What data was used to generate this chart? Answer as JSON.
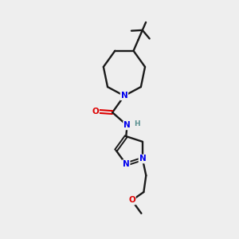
{
  "background_color": "#eeeeee",
  "bond_color": "#1a1a1a",
  "N_color": "#0000ee",
  "O_color": "#dd0000",
  "H_color": "#5a9090",
  "figsize": [
    3.0,
    3.0
  ],
  "dpi": 100,
  "xlim": [
    0,
    10
  ],
  "ylim": [
    0,
    10
  ]
}
